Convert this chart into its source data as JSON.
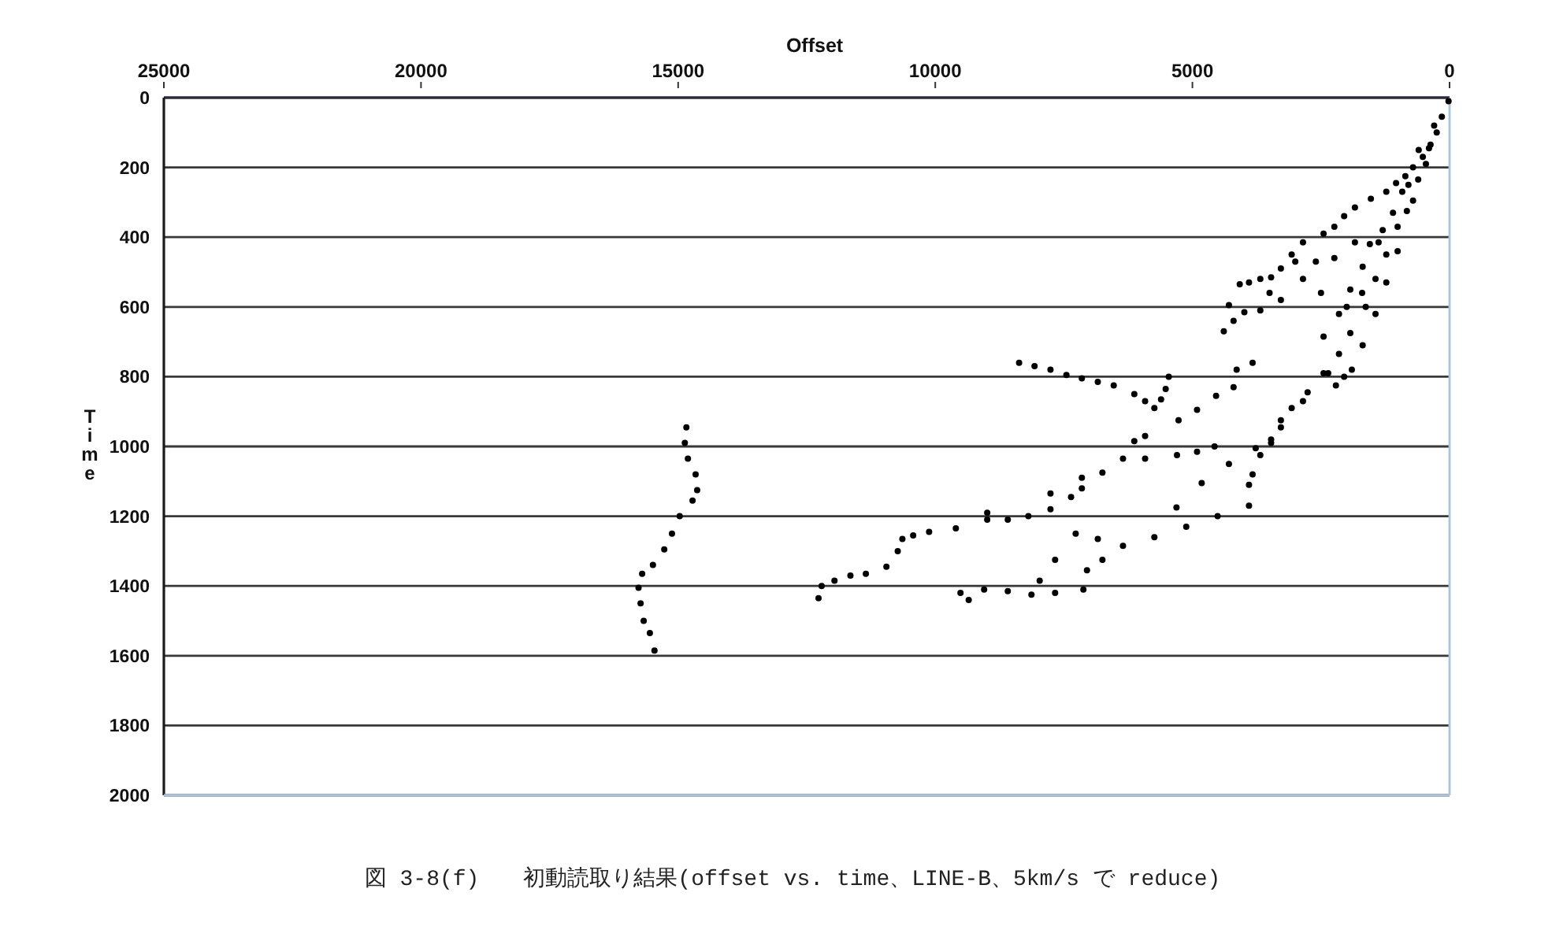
{
  "chart_data": {
    "type": "scatter",
    "xlabel": "Offset",
    "ylabel": "Time",
    "annotations": [
      "図 3-8(f)　　初動読取り結果(offset vs. time、LINE-B、5km/s で reduce)"
    ],
    "xlim": [
      25000,
      0
    ],
    "xticks": [
      25000,
      20000,
      15000,
      10000,
      5000,
      0
    ],
    "ylim": [
      2000,
      0
    ],
    "yticks": [
      0,
      200,
      400,
      600,
      800,
      1000,
      1200,
      1400,
      1600,
      1800,
      2000
    ],
    "grid": "y",
    "marker": "circle",
    "series": [
      {
        "color": "#000000",
        "x": [
          20,
          150,
          250,
          370,
          520,
          710,
          860,
          610,
          460,
          1040,
          1230,
          1530,
          1840,
          2050,
          2240,
          2450,
          2850,
          3070,
          3280,
          3470,
          3680,
          3900,
          4080,
          4290,
          4390,
          4200,
          3990,
          3680,
          3280,
          2850,
          2240,
          1840,
          400,
          710,
          920,
          1010,
          1230,
          1440,
          1630,
          1930,
          2150,
          2360,
          1380,
          1690,
          1930,
          2150,
          2450,
          830,
          1010,
          1230,
          1440,
          1690,
          1900,
          2050,
          2210,
          300,
          600,
          800,
          1100,
          1300,
          1550,
          1700,
          2000,
          2500,
          3000,
          3500,
          2600
        ],
        "values": [
          10,
          55,
          100,
          135,
          170,
          200,
          225,
          235,
          190,
          245,
          270,
          290,
          315,
          340,
          370,
          390,
          415,
          450,
          490,
          515,
          520,
          530,
          535,
          595,
          670,
          640,
          615,
          610,
          580,
          520,
          460,
          415,
          145,
          295,
          270,
          370,
          450,
          520,
          600,
          675,
          735,
          790,
          415,
          485,
          550,
          620,
          685,
          325,
          440,
          530,
          620,
          710,
          780,
          800,
          825,
          80,
          150,
          250,
          330,
          380,
          420,
          560,
          600,
          560,
          470,
          560,
          470
        ]
      },
      {
        "color": "#000000",
        "x": [
          2760,
          3070,
          3280,
          3470,
          3680,
          3830,
          3900,
          2450,
          2850,
          3280,
          3470,
          3770,
          4290,
          4820,
          5310,
          4570,
          4910,
          5300
        ],
        "values": [
          845,
          890,
          925,
          980,
          1025,
          1080,
          1110,
          790,
          870,
          945,
          990,
          1005,
          1050,
          1105,
          1175,
          1000,
          1015,
          1025
        ]
      },
      {
        "color": "#000000",
        "x": [
          5920,
          6350,
          6750,
          7150,
          7360,
          7760,
          8190,
          8590,
          8990,
          9600,
          10120,
          10430,
          10730,
          10950,
          11350,
          11650,
          11960,
          12210,
          12270,
          10640,
          8990,
          7760,
          7150,
          6130,
          5920
        ],
        "values": [
          1035,
          1035,
          1075,
          1120,
          1145,
          1180,
          1200,
          1210,
          1210,
          1235,
          1245,
          1255,
          1300,
          1345,
          1365,
          1370,
          1385,
          1400,
          1435,
          1265,
          1190,
          1135,
          1090,
          985,
          970
        ]
      },
      {
        "color": "#000000",
        "x": [
          8370,
          8070,
          7760,
          7450,
          7150,
          6840,
          6530,
          6130,
          5920,
          5740,
          5610,
          5520,
          5460,
          4140,
          3830,
          5270,
          4910,
          4540,
          4200
        ],
        "values": [
          760,
          770,
          780,
          795,
          805,
          815,
          825,
          850,
          870,
          890,
          865,
          835,
          800,
          780,
          760,
          925,
          895,
          855,
          830
        ]
      },
      {
        "color": "#000000",
        "x": [
          7050,
          6750,
          6350,
          5740,
          5120,
          4510,
          3900,
          9510,
          9050,
          8590,
          8130,
          7670,
          7120,
          9350,
          7970,
          7670,
          7270,
          6840
        ],
        "values": [
          1355,
          1325,
          1285,
          1260,
          1230,
          1200,
          1170,
          1420,
          1410,
          1415,
          1425,
          1420,
          1410,
          1440,
          1385,
          1325,
          1250,
          1265
        ]
      },
      {
        "color": "#000000",
        "x": [
          14840,
          14870,
          14810,
          14660,
          14630,
          14720,
          14970,
          15120,
          15270,
          15490,
          15700,
          15770,
          15730,
          15670,
          15550,
          15460
        ],
        "values": [
          945,
          990,
          1035,
          1080,
          1125,
          1155,
          1200,
          1250,
          1295,
          1340,
          1365,
          1405,
          1450,
          1500,
          1535,
          1585
        ]
      }
    ]
  }
}
